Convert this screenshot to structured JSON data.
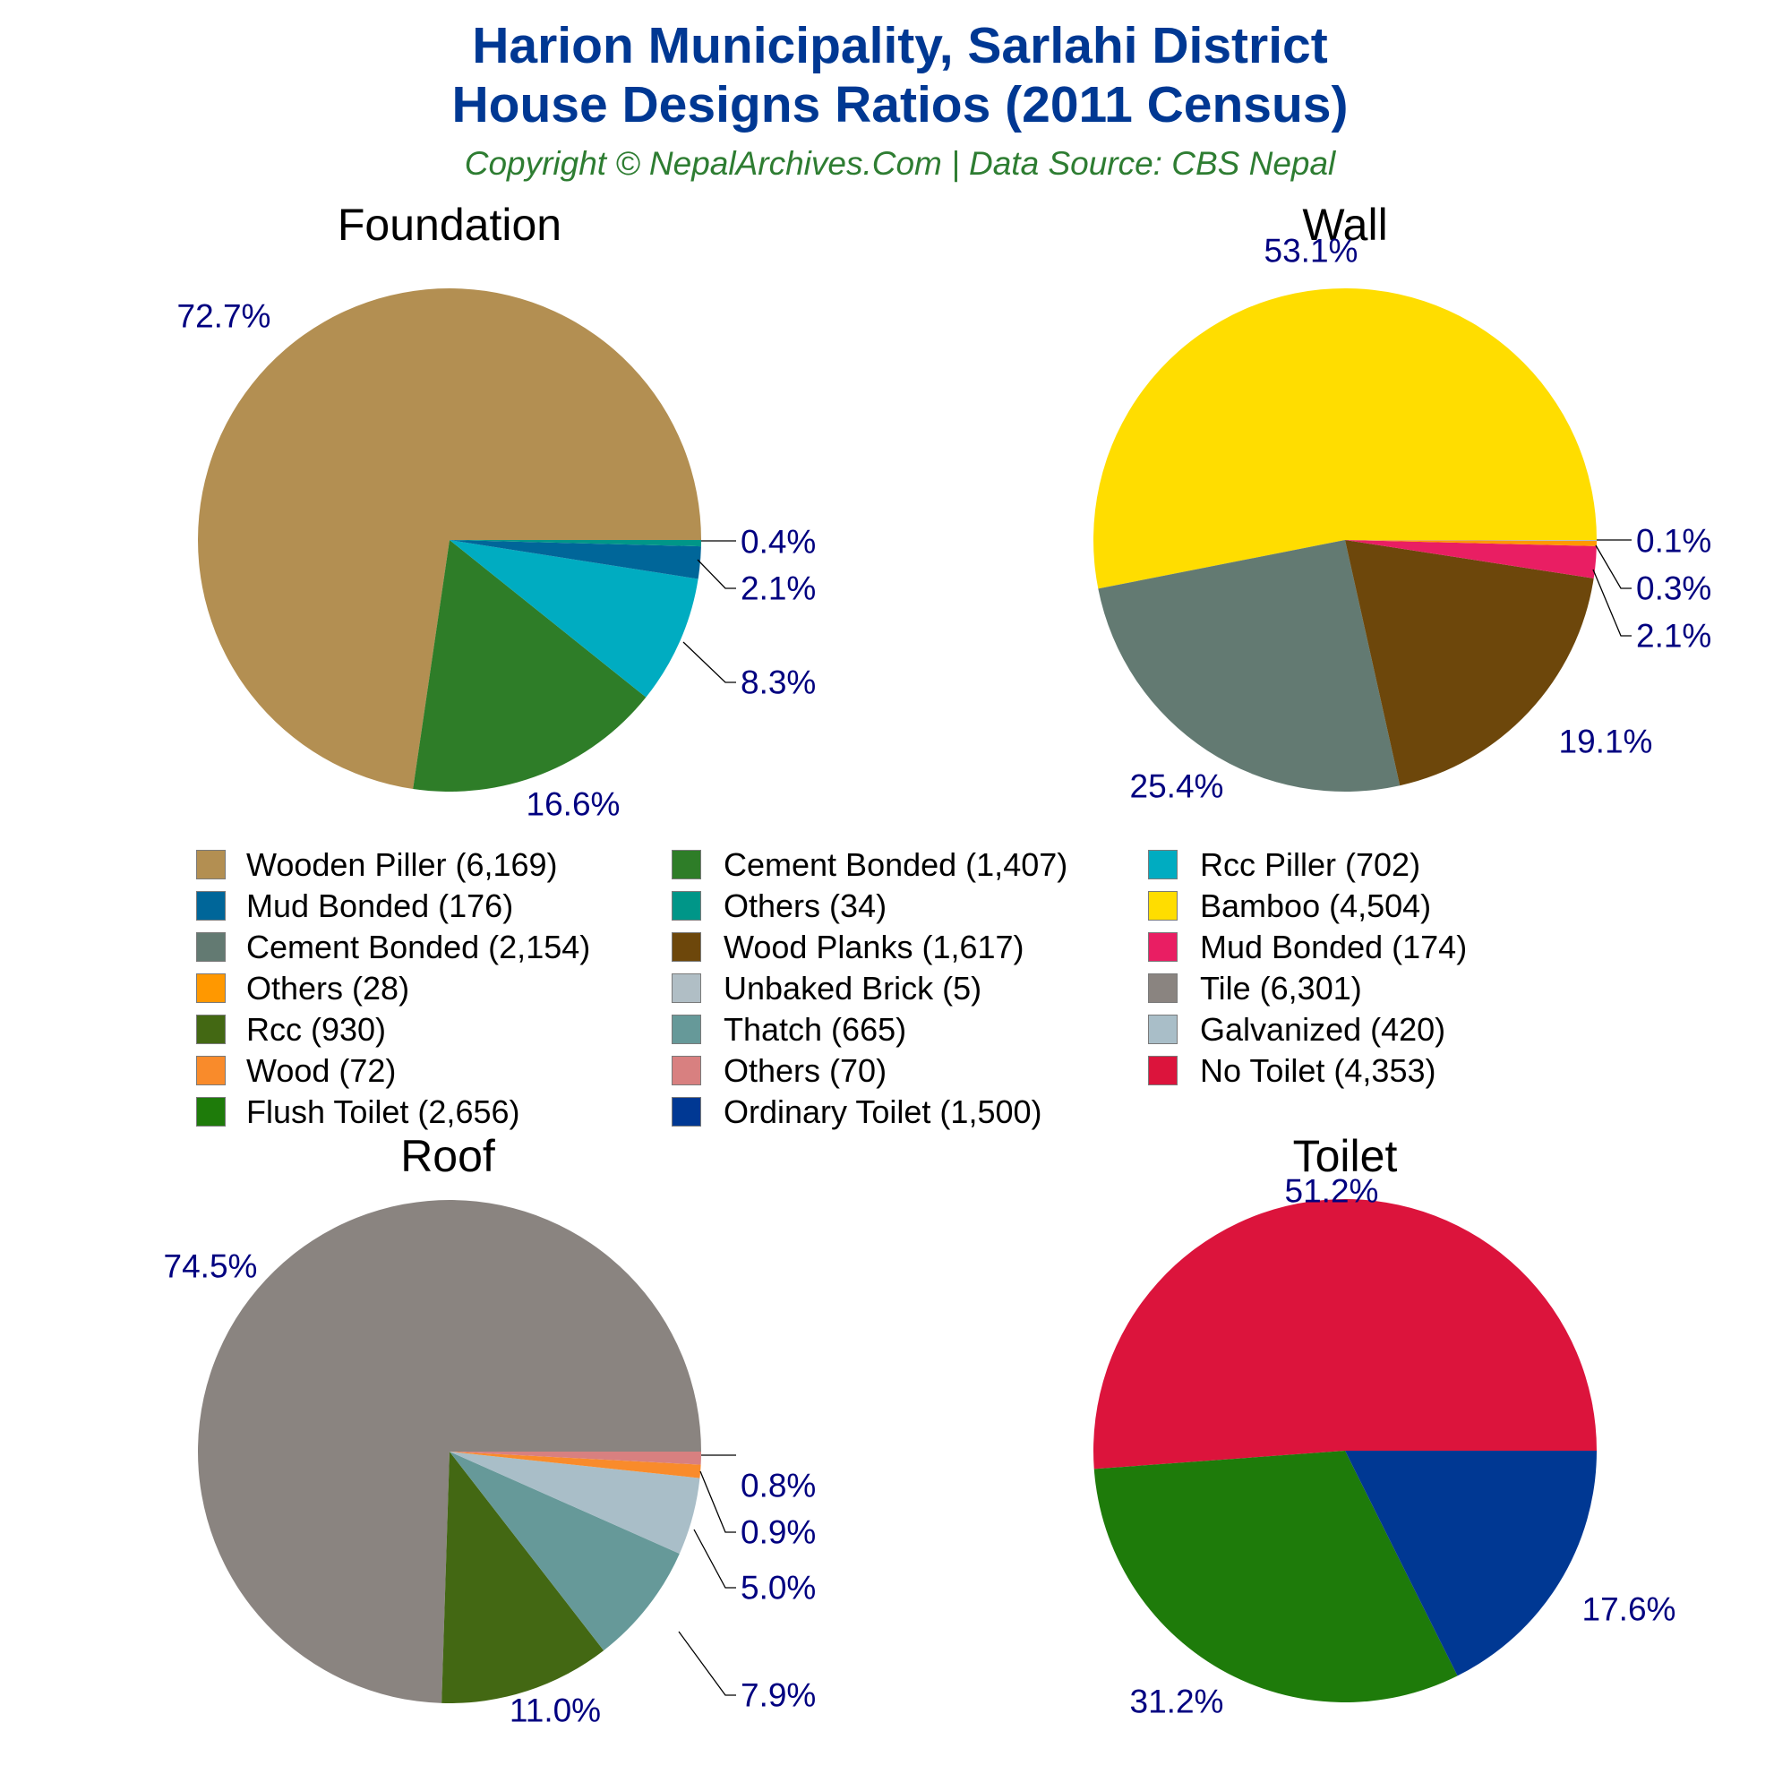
{
  "header": {
    "title_line1": "Harion Municipality, Sarlahi District",
    "title_line2": "House Designs Ratios (2011 Census)",
    "subtitle": "Copyright © NepalArchives.Com | Data Source: CBS Nepal"
  },
  "colors": {
    "title": "#003893",
    "subtitle": "#2e7d32",
    "percent_label": "#000080"
  },
  "legend": {
    "items": [
      {
        "label": "Wooden Piller (6,169)",
        "color": "#b38f52"
      },
      {
        "label": "Cement Bonded (1,407)",
        "color": "#2e7d28"
      },
      {
        "label": "Rcc Piller (702)",
        "color": "#00acc1"
      },
      {
        "label": "Mud Bonded (176)",
        "color": "#006699"
      },
      {
        "label": "Others (34)",
        "color": "#009688"
      },
      {
        "label": "Bamboo (4,504)",
        "color": "#ffdd00"
      },
      {
        "label": "Cement Bonded (2,154)",
        "color": "#637a72"
      },
      {
        "label": "Wood Planks (1,617)",
        "color": "#6d470b"
      },
      {
        "label": "Mud Bonded (174)",
        "color": "#e91e63"
      },
      {
        "label": "Others (28)",
        "color": "#ff9800"
      },
      {
        "label": "Unbaked Brick (5)",
        "color": "#b0bec5"
      },
      {
        "label": "Tile (6,301)",
        "color": "#8a8480"
      },
      {
        "label": "Rcc (930)",
        "color": "#436813"
      },
      {
        "label": "Thatch (665)",
        "color": "#669999"
      },
      {
        "label": "Galvanized (420)",
        "color": "#a9bec8"
      },
      {
        "label": "Wood (72)",
        "color": "#f98b2b"
      },
      {
        "label": "Others (70)",
        "color": "#d88080"
      },
      {
        "label": "No Toilet (4,353)",
        "color": "#dc143c"
      },
      {
        "label": "Flush Toilet (2,656)",
        "color": "#1e7b0a"
      },
      {
        "label": "Ordinary Toilet (1,500)",
        "color": "#003893"
      }
    ]
  },
  "chart_data": [
    {
      "type": "pie",
      "title": "Foundation",
      "categories": [
        "Wooden Piller",
        "Cement Bonded",
        "Rcc Piller",
        "Mud Bonded",
        "Others"
      ],
      "values": [
        6169,
        1407,
        702,
        176,
        34
      ],
      "percent_labels": [
        "72.7%",
        "16.6%",
        "8.3%",
        "2.1%",
        "0.4%"
      ],
      "colors": [
        "#b38f52",
        "#2e7d28",
        "#00acc1",
        "#006699",
        "#009688"
      ]
    },
    {
      "type": "pie",
      "title": "Wall",
      "categories": [
        "Bamboo",
        "Cement Bonded",
        "Wood Planks",
        "Mud Bonded",
        "Others",
        "Unbaked Brick"
      ],
      "values": [
        4504,
        2154,
        1617,
        174,
        28,
        5
      ],
      "percent_labels": [
        "53.1%",
        "25.4%",
        "19.1%",
        "2.1%",
        "0.3%",
        "0.1%"
      ],
      "colors": [
        "#ffdd00",
        "#637a72",
        "#6d470b",
        "#e91e63",
        "#ff9800",
        "#b0bec5"
      ]
    },
    {
      "type": "pie",
      "title": "Roof",
      "categories": [
        "Tile",
        "Rcc",
        "Thatch",
        "Galvanized",
        "Wood",
        "Others"
      ],
      "values": [
        6301,
        930,
        665,
        420,
        72,
        70
      ],
      "percent_labels": [
        "74.5%",
        "11.0%",
        "7.9%",
        "5.0%",
        "0.9%",
        "0.8%"
      ],
      "colors": [
        "#8a8480",
        "#436813",
        "#669999",
        "#a9bec8",
        "#f98b2b",
        "#d88080"
      ]
    },
    {
      "type": "pie",
      "title": "Toilet",
      "categories": [
        "No Toilet",
        "Flush Toilet",
        "Ordinary Toilet"
      ],
      "values": [
        4353,
        2656,
        1500
      ],
      "percent_labels": [
        "51.2%",
        "31.2%",
        "17.6%"
      ],
      "colors": [
        "#dc143c",
        "#1e7b0a",
        "#003893"
      ]
    }
  ]
}
